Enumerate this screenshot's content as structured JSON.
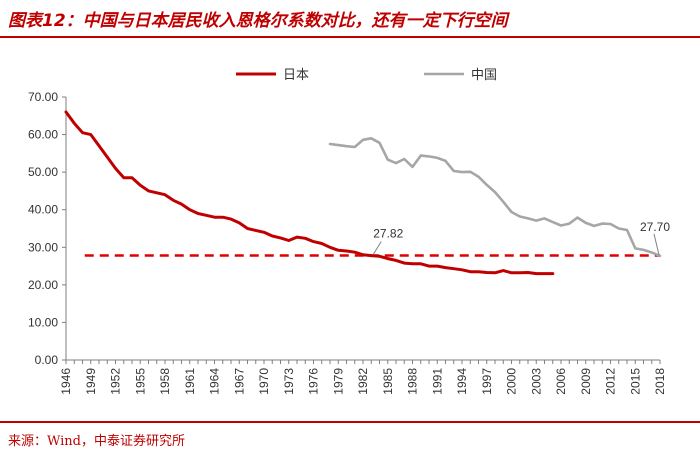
{
  "header": {
    "title": "图表12：中国与日本居民收入恩格尔系数对比，还有一定下行空间"
  },
  "footer": {
    "source": "来源：Wind，中泰证券研究所"
  },
  "chart_data": {
    "type": "line",
    "title": "",
    "xlabel": "",
    "ylabel": "",
    "ylim": [
      0,
      70
    ],
    "yticks": [
      "0.00",
      "10.00",
      "20.00",
      "30.00",
      "40.00",
      "50.00",
      "60.00",
      "70.00"
    ],
    "xticks": [
      "1946",
      "1949",
      "1952",
      "1955",
      "1958",
      "1961",
      "1964",
      "1967",
      "1970",
      "1973",
      "1976",
      "1979",
      "1982",
      "1985",
      "1988",
      "1991",
      "1994",
      "1997",
      "2000",
      "2003",
      "2006",
      "2009",
      "2012",
      "2015",
      "2018"
    ],
    "legend_position": "top",
    "series": [
      {
        "name": "日本",
        "color": "#c00000",
        "x": [
          1946,
          1947,
          1948,
          1949,
          1950,
          1951,
          1952,
          1953,
          1954,
          1955,
          1956,
          1957,
          1958,
          1959,
          1960,
          1961,
          1962,
          1963,
          1964,
          1965,
          1966,
          1967,
          1968,
          1969,
          1970,
          1971,
          1972,
          1973,
          1974,
          1975,
          1976,
          1977,
          1978,
          1979,
          1980,
          1981,
          1982,
          1983,
          1984,
          1985,
          1986,
          1987,
          1988,
          1989,
          1990,
          1991,
          1992,
          1993,
          1994,
          1995,
          1996,
          1997,
          1998,
          1999,
          2000,
          2001,
          2002,
          2003,
          2004,
          2005
        ],
        "values": [
          66.0,
          63.0,
          60.5,
          60.0,
          57.0,
          54.0,
          51.0,
          48.5,
          48.5,
          46.5,
          45.0,
          44.5,
          44.0,
          42.5,
          41.5,
          40.0,
          39.0,
          38.5,
          38.0,
          38.0,
          37.5,
          36.5,
          35.0,
          34.5,
          34.0,
          33.0,
          32.5,
          31.8,
          32.7,
          32.4,
          31.5,
          31.0,
          30.0,
          29.2,
          29.0,
          28.7,
          28.0,
          27.8,
          27.6,
          27.0,
          26.5,
          25.8,
          25.6,
          25.6,
          25.0,
          25.0,
          24.6,
          24.3,
          24.0,
          23.5,
          23.5,
          23.3,
          23.2,
          23.8,
          23.2,
          23.2,
          23.3,
          23.0,
          23.0,
          23.0
        ]
      },
      {
        "name": "中国",
        "color": "#a6a6a6",
        "x": [
          1978,
          1979,
          1980,
          1981,
          1982,
          1983,
          1984,
          1985,
          1986,
          1987,
          1988,
          1989,
          1990,
          1991,
          1992,
          1993,
          1994,
          1995,
          1996,
          1997,
          1998,
          1999,
          2000,
          2001,
          2002,
          2003,
          2004,
          2005,
          2006,
          2007,
          2008,
          2009,
          2010,
          2011,
          2012,
          2013,
          2014,
          2015,
          2016,
          2017,
          2018
        ],
        "values": [
          57.5,
          57.2,
          56.9,
          56.7,
          58.6,
          59.0,
          57.8,
          53.3,
          52.4,
          53.5,
          51.4,
          54.4,
          54.2,
          53.8,
          53.0,
          50.3,
          50.0,
          50.1,
          48.8,
          46.6,
          44.7,
          42.1,
          39.4,
          38.2,
          37.7,
          37.1,
          37.7,
          36.7,
          35.8,
          36.3,
          37.9,
          36.5,
          35.7,
          36.3,
          36.2,
          35.0,
          34.6,
          29.7,
          29.3,
          28.6,
          27.7
        ]
      }
    ],
    "reference_line": {
      "value": 27.82,
      "color": "#e00000",
      "style": "dashed"
    },
    "annotations": [
      {
        "text": "27.82",
        "x": 1983,
        "y": 27.82
      },
      {
        "text": "27.70",
        "x": 2018,
        "y": 27.7
      }
    ]
  }
}
